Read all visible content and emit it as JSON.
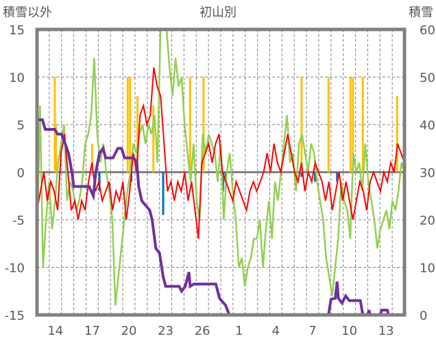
{
  "chart_data": {
    "type": "line",
    "title": "初山別",
    "ylabel_left": "積雪以外",
    "ylabel_right": "積雪",
    "ylim_left": [
      -15,
      15
    ],
    "ylim_right": [
      0,
      60
    ],
    "xlim_days": [
      0,
      30
    ],
    "left_ticks": [
      "15",
      "10",
      "5",
      "0",
      "-5",
      "-10",
      "-15"
    ],
    "right_ticks": [
      "60",
      "50",
      "40",
      "30",
      "20",
      "10",
      "0"
    ],
    "x_ticks": [
      {
        "t": 1.5,
        "label": "14"
      },
      {
        "t": 4.5,
        "label": "17"
      },
      {
        "t": 7.5,
        "label": "20"
      },
      {
        "t": 10.5,
        "label": "23"
      },
      {
        "t": 13.5,
        "label": "26"
      },
      {
        "t": 16.5,
        "label": "1"
      },
      {
        "t": 19.5,
        "label": "4"
      },
      {
        "t": 22.5,
        "label": "7"
      },
      {
        "t": 25.5,
        "label": "10"
      },
      {
        "t": 28.5,
        "label": "13"
      }
    ],
    "grid": true,
    "colors": {
      "red": "#ff0000",
      "green": "#92d050",
      "yellow": "#ffc000",
      "blue": "#0070c0",
      "purple": "#7030a0"
    },
    "red_series": {
      "axis": "left",
      "step_days": 0.28,
      "values": [
        -4,
        -2,
        0,
        -3,
        -1,
        -2,
        -4,
        2,
        4,
        0,
        -4,
        -3,
        -5,
        -3,
        -4,
        -1,
        1,
        -2,
        -1,
        -3,
        -2,
        -1,
        -4,
        -2,
        -3,
        -1,
        -5,
        -2,
        2,
        0,
        6,
        7,
        5,
        6,
        11,
        9,
        8,
        3,
        -2,
        -1,
        -3,
        -1,
        -2,
        0,
        -3,
        -1,
        -4,
        -7,
        1,
        2,
        3,
        1,
        3,
        4,
        0,
        -1,
        -2,
        -3,
        -1,
        -2,
        -3,
        -4,
        -2,
        -1,
        -2,
        -1,
        0,
        2,
        0,
        3,
        1,
        0,
        2,
        4,
        2,
        0,
        -1,
        1,
        -2,
        0,
        -1,
        1,
        0,
        -1,
        -3,
        -1,
        -4,
        -2,
        0,
        -3,
        -1,
        -3,
        -5,
        -3,
        -1,
        -2,
        -4,
        -1,
        0,
        -1,
        -2,
        0,
        -1,
        1,
        0,
        3,
        2,
        1
      ]
    },
    "green_series": {
      "axis": "left",
      "values": [
        -8,
        7,
        -10,
        -5,
        -1,
        -6,
        -3,
        1,
        3,
        5,
        -3,
        -1,
        -2,
        -4,
        -3,
        -1,
        3,
        4,
        6,
        12,
        4,
        1,
        3,
        0,
        -2,
        -5,
        -14,
        -11,
        -8,
        -5,
        -2,
        0,
        3,
        2,
        4,
        5,
        3,
        5,
        4,
        6,
        1,
        15,
        15,
        15,
        11,
        8,
        12,
        9,
        10,
        5,
        2,
        -1,
        3,
        -3,
        -5,
        4,
        2,
        4,
        3,
        2,
        -1,
        3,
        -5,
        0,
        2,
        -2,
        -5,
        -10,
        -9,
        -12,
        -10,
        -9,
        -7,
        -7,
        -5,
        -10,
        -6,
        -3,
        -7,
        -1,
        -3,
        0,
        3,
        6,
        1,
        2,
        -2,
        3,
        4,
        2,
        0,
        3,
        2,
        -1,
        -3,
        -5,
        -9,
        -11,
        -13,
        -10,
        -7,
        -1,
        -3,
        -4,
        -7,
        2,
        0,
        1,
        -2,
        3,
        -1,
        -3,
        -5,
        -8,
        -6,
        -5,
        -4,
        -6,
        -3,
        -4,
        -2,
        1,
        0
      ]
    },
    "yellow_bars": {
      "axis": "left",
      "points": [
        [
          1.45,
          10
        ],
        [
          1.55,
          5
        ],
        [
          4.5,
          3
        ],
        [
          7.4,
          10
        ],
        [
          7.6,
          10
        ],
        [
          8.2,
          8
        ],
        [
          9.5,
          7
        ],
        [
          12.5,
          10
        ],
        [
          13.6,
          10
        ],
        [
          21.6,
          10
        ],
        [
          23.8,
          10
        ],
        [
          25.6,
          10
        ],
        [
          25.8,
          10
        ],
        [
          26.6,
          10
        ],
        [
          29.4,
          8
        ]
      ]
    },
    "blue_bars": {
      "axis": "left",
      "points": [
        [
          5.1,
          -2
        ],
        [
          7.7,
          -1
        ],
        [
          10.3,
          -4.5
        ],
        [
          15.2,
          -2
        ],
        [
          15.4,
          -1
        ],
        [
          21.6,
          -0.5
        ],
        [
          22.7,
          -1
        ],
        [
          24.5,
          -1
        ]
      ]
    },
    "purple_series": {
      "axis": "right",
      "points": [
        [
          0,
          41
        ],
        [
          0.45,
          41
        ],
        [
          0.67,
          39
        ],
        [
          1.45,
          39
        ],
        [
          1.68,
          38
        ],
        [
          2,
          38
        ],
        [
          2.3,
          36
        ],
        [
          2.57,
          34
        ],
        [
          2.85,
          30
        ],
        [
          3,
          27
        ],
        [
          4.25,
          27
        ],
        [
          4.6,
          25
        ],
        [
          4.8,
          30
        ],
        [
          5.1,
          34
        ],
        [
          5.4,
          35
        ],
        [
          5.6,
          33
        ],
        [
          6.2,
          33
        ],
        [
          6.6,
          35
        ],
        [
          6.9,
          35
        ],
        [
          7.15,
          33
        ],
        [
          7.9,
          33
        ],
        [
          8.15,
          32
        ],
        [
          8.3,
          27
        ],
        [
          8.55,
          24
        ],
        [
          9.2,
          22
        ],
        [
          9.4,
          20
        ],
        [
          9.7,
          14
        ],
        [
          10,
          13
        ],
        [
          10.3,
          8
        ],
        [
          10.5,
          6
        ],
        [
          11.6,
          6
        ],
        [
          11.8,
          5
        ],
        [
          12.1,
          6
        ],
        [
          12.4,
          9
        ],
        [
          12.5,
          6
        ],
        [
          12.8,
          6.5
        ],
        [
          14.6,
          6.5
        ],
        [
          14.9,
          3.5
        ],
        [
          15.4,
          2
        ],
        [
          15.7,
          0
        ],
        [
          23.8,
          0
        ],
        [
          24,
          3.3
        ],
        [
          24.35,
          3.5
        ],
        [
          24.5,
          7
        ],
        [
          24.6,
          3.5
        ],
        [
          24.9,
          2.5
        ],
        [
          25.2,
          4
        ],
        [
          25.5,
          3
        ],
        [
          26,
          3
        ],
        [
          26.4,
          3
        ],
        [
          26.6,
          0
        ],
        [
          27,
          0
        ],
        [
          27.1,
          1
        ],
        [
          27.2,
          0
        ],
        [
          28,
          0
        ],
        [
          28.15,
          1
        ],
        [
          28.6,
          1
        ],
        [
          28.7,
          0
        ],
        [
          30,
          0
        ]
      ]
    }
  }
}
